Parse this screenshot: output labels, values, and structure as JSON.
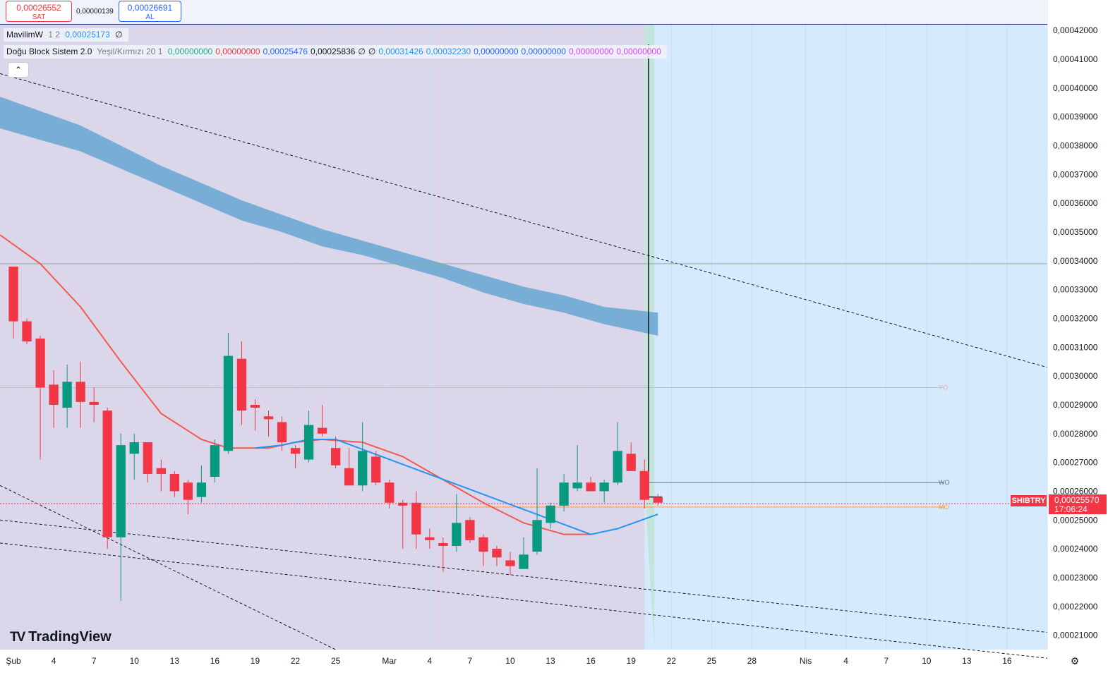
{
  "top_panel": {
    "sell_price": "0,00026552",
    "sell_label": "SAT",
    "spread": "0,00000139",
    "buy_price": "0,00026691",
    "buy_label": "AL"
  },
  "legend1": {
    "name": "MavilimW",
    "params": "1 2",
    "value": "0,00025173",
    "empty": "∅"
  },
  "legend2": {
    "name": "Doğu Block Sistem 2.0",
    "params": "Yeşil/Kırmızı 20 1",
    "values": [
      {
        "text": "0,00000000",
        "color": "#22ab94"
      },
      {
        "text": "0,00000000",
        "color": "#f23645"
      },
      {
        "text": "0,00025476",
        "color": "#2962ff"
      },
      {
        "text": "0,00025836",
        "color": "#131722"
      },
      {
        "text": "∅",
        "color": "#131722"
      },
      {
        "text": "∅",
        "color": "#131722"
      },
      {
        "text": "0,00031426",
        "color": "#2196f3"
      },
      {
        "text": "0,00032230",
        "color": "#2196f3"
      },
      {
        "text": "0,00000000",
        "color": "#2962ff"
      },
      {
        "text": "0,00000000",
        "color": "#2962ff"
      },
      {
        "text": "0,00000000",
        "color": "#e040fb"
      },
      {
        "text": "0,00000000",
        "color": "#e040fb"
      }
    ]
  },
  "collapse_glyph": "⌃",
  "logo": {
    "mark": "TV",
    "text": "TradingView"
  },
  "settings_glyph": "⚙",
  "symbol": "SHIBTRY",
  "last_price": "0,00025570",
  "countdown": "17:06:24",
  "level_labels": {
    "yo": "YO",
    "wo": "WO",
    "mo": "MO"
  },
  "colors": {
    "up": "#089981",
    "down": "#f23645",
    "bg_blue": "#d6eafd",
    "bg_purple": "#dcd6ea",
    "cloud": "#72acd4",
    "ma_red": "#f15b4f",
    "ma_blue": "#2196f3"
  },
  "chart_data": {
    "type": "candlestick",
    "y_axis": {
      "min": 0.000205,
      "max": 0.000422,
      "ticks": [
        "0,00042000",
        "0,00041000",
        "0,00040000",
        "0,00039000",
        "0,00038000",
        "0,00037000",
        "0,00036000",
        "0,00035000",
        "0,00034000",
        "0,00033000",
        "0,00032000",
        "0,00031000",
        "0,00030000",
        "0,00029000",
        "0,00028000",
        "0,00027000",
        "0,00026000",
        "0,00025000",
        "0,00024000",
        "0,00023000",
        "0,00022000",
        "0,00021000"
      ],
      "tick_values": [
        0.00042,
        0.00041,
        0.0004,
        0.00039,
        0.00038,
        0.00037,
        0.00036,
        0.00035,
        0.00034,
        0.00033,
        0.00032,
        0.00031,
        0.0003,
        0.00029,
        0.00028,
        0.00027,
        0.00026,
        0.00025,
        0.00024,
        0.00023,
        0.00022,
        0.00021
      ]
    },
    "x_axis": {
      "labels": [
        "Şub",
        "4",
        "7",
        "10",
        "13",
        "16",
        "19",
        "22",
        "25",
        "Mar",
        "4",
        "7",
        "10",
        "13",
        "16",
        "19",
        "22",
        "25",
        "28",
        "Nis",
        "4",
        "7",
        "10",
        "13",
        "16"
      ],
      "label_days": [
        1,
        4,
        7,
        10,
        13,
        16,
        19,
        22,
        25,
        29,
        32,
        35,
        38,
        41,
        44,
        47,
        50,
        53,
        56,
        60,
        63,
        66,
        69,
        72,
        75
      ],
      "day_min": 0,
      "day_max": 78
    },
    "candles": [
      {
        "d": 1,
        "o": 0.000338,
        "h": 0.000338,
        "l": 0.000313,
        "c": 0.000319
      },
      {
        "d": 2,
        "o": 0.000319,
        "h": 0.00032,
        "l": 0.000311,
        "c": 0.000312
      },
      {
        "d": 3,
        "o": 0.000313,
        "h": 0.000314,
        "l": 0.000271,
        "c": 0.000296
      },
      {
        "d": 4,
        "o": 0.000297,
        "h": 0.000302,
        "l": 0.000282,
        "c": 0.00029
      },
      {
        "d": 5,
        "o": 0.000289,
        "h": 0.000304,
        "l": 0.000282,
        "c": 0.000298
      },
      {
        "d": 6,
        "o": 0.000298,
        "h": 0.000305,
        "l": 0.000282,
        "c": 0.000291
      },
      {
        "d": 7,
        "o": 0.000291,
        "h": 0.000296,
        "l": 0.000284,
        "c": 0.00029
      },
      {
        "d": 8,
        "o": 0.000288,
        "h": 0.000289,
        "l": 0.00024,
        "c": 0.000244
      },
      {
        "d": 9,
        "o": 0.000244,
        "h": 0.00028,
        "l": 0.000222,
        "c": 0.000276
      },
      {
        "d": 10,
        "o": 0.000273,
        "h": 0.00028,
        "l": 0.000264,
        "c": 0.000277
      },
      {
        "d": 11,
        "o": 0.000277,
        "h": 0.000277,
        "l": 0.000263,
        "c": 0.000266
      },
      {
        "d": 12,
        "o": 0.000268,
        "h": 0.000271,
        "l": 0.00026,
        "c": 0.000266
      },
      {
        "d": 13,
        "o": 0.000266,
        "h": 0.000267,
        "l": 0.000258,
        "c": 0.00026
      },
      {
        "d": 14,
        "o": 0.000263,
        "h": 0.000264,
        "l": 0.000252,
        "c": 0.000257
      },
      {
        "d": 15,
        "o": 0.000258,
        "h": 0.000269,
        "l": 0.000256,
        "c": 0.000263
      },
      {
        "d": 16,
        "o": 0.000265,
        "h": 0.000278,
        "l": 0.000263,
        "c": 0.000276
      },
      {
        "d": 17,
        "o": 0.000274,
        "h": 0.000315,
        "l": 0.000273,
        "c": 0.000307
      },
      {
        "d": 18,
        "o": 0.000306,
        "h": 0.000312,
        "l": 0.000283,
        "c": 0.000288
      },
      {
        "d": 19,
        "o": 0.00029,
        "h": 0.000292,
        "l": 0.000281,
        "c": 0.000289
      },
      {
        "d": 20,
        "o": 0.000286,
        "h": 0.000288,
        "l": 0.000279,
        "c": 0.000285
      },
      {
        "d": 21,
        "o": 0.000284,
        "h": 0.000286,
        "l": 0.000274,
        "c": 0.000277
      },
      {
        "d": 22,
        "o": 0.000275,
        "h": 0.000276,
        "l": 0.000268,
        "c": 0.000273
      },
      {
        "d": 23,
        "o": 0.000271,
        "h": 0.000288,
        "l": 0.00027,
        "c": 0.000283
      },
      {
        "d": 24,
        "o": 0.000282,
        "h": 0.00029,
        "l": 0.000279,
        "c": 0.00028
      },
      {
        "d": 25,
        "o": 0.000275,
        "h": 0.000279,
        "l": 0.000268,
        "c": 0.000269
      },
      {
        "d": 26,
        "o": 0.000268,
        "h": 0.000275,
        "l": 0.000262,
        "c": 0.000262
      },
      {
        "d": 27,
        "o": 0.000262,
        "h": 0.000284,
        "l": 0.00026,
        "c": 0.000274
      },
      {
        "d": 28,
        "o": 0.000272,
        "h": 0.000274,
        "l": 0.000262,
        "c": 0.000263
      },
      {
        "d": 29,
        "o": 0.000263,
        "h": 0.000264,
        "l": 0.000254,
        "c": 0.000256
      },
      {
        "d": 30,
        "o": 0.000256,
        "h": 0.000257,
        "l": 0.00024,
        "c": 0.000255
      },
      {
        "d": 31,
        "o": 0.000256,
        "h": 0.00026,
        "l": 0.00024,
        "c": 0.000245
      },
      {
        "d": 32,
        "o": 0.000244,
        "h": 0.000247,
        "l": 0.00024,
        "c": 0.000243
      },
      {
        "d": 33,
        "o": 0.000242,
        "h": 0.000244,
        "l": 0.000232,
        "c": 0.000241
      },
      {
        "d": 34,
        "o": 0.000241,
        "h": 0.000259,
        "l": 0.000239,
        "c": 0.000249
      },
      {
        "d": 35,
        "o": 0.00025,
        "h": 0.000251,
        "l": 0.000242,
        "c": 0.000243
      },
      {
        "d": 36,
        "o": 0.000244,
        "h": 0.000245,
        "l": 0.000234,
        "c": 0.000239
      },
      {
        "d": 37,
        "o": 0.00024,
        "h": 0.000241,
        "l": 0.000234,
        "c": 0.000237
      },
      {
        "d": 38,
        "o": 0.000236,
        "h": 0.000239,
        "l": 0.000231,
        "c": 0.000234
      },
      {
        "d": 39,
        "o": 0.000233,
        "h": 0.000244,
        "l": 0.000233,
        "c": 0.000238
      },
      {
        "d": 40,
        "o": 0.000239,
        "h": 0.000268,
        "l": 0.000238,
        "c": 0.00025
      },
      {
        "d": 41,
        "o": 0.000249,
        "h": 0.000256,
        "l": 0.000247,
        "c": 0.000255
      },
      {
        "d": 42,
        "o": 0.000255,
        "h": 0.000266,
        "l": 0.000253,
        "c": 0.000263
      },
      {
        "d": 43,
        "o": 0.000261,
        "h": 0.000276,
        "l": 0.00026,
        "c": 0.000263
      },
      {
        "d": 44,
        "o": 0.000263,
        "h": 0.000265,
        "l": 0.00026,
        "c": 0.00026
      },
      {
        "d": 45,
        "o": 0.00026,
        "h": 0.000264,
        "l": 0.000256,
        "c": 0.000263
      },
      {
        "d": 46,
        "o": 0.000263,
        "h": 0.000284,
        "l": 0.000262,
        "c": 0.000274
      },
      {
        "d": 47,
        "o": 0.000273,
        "h": 0.000277,
        "l": 0.000267,
        "c": 0.000267
      },
      {
        "d": 48,
        "o": 0.000267,
        "h": 0.000271,
        "l": 0.000254,
        "c": 0.000257
      },
      {
        "d": 49,
        "o": 0.000258,
        "h": 0.000259,
        "l": 0.000255,
        "c": 0.000256
      }
    ],
    "series": [
      {
        "type": "line",
        "color": "#f15b4f",
        "points": [
          [
            0,
            0.000349
          ],
          [
            3,
            0.000339
          ],
          [
            6,
            0.000324
          ],
          [
            9,
            0.000305
          ],
          [
            12,
            0.000287
          ],
          [
            15,
            0.000278
          ],
          [
            17,
            0.000275
          ],
          [
            20,
            0.000275
          ],
          [
            22,
            0.000277
          ],
          [
            24,
            0.000278
          ],
          [
            27,
            0.000277
          ],
          [
            30,
            0.000272
          ],
          [
            33,
            0.000264
          ],
          [
            36,
            0.000256
          ],
          [
            39,
            0.000249
          ],
          [
            42,
            0.000245
          ],
          [
            44,
            0.000245
          ]
        ]
      },
      {
        "type": "line",
        "color": "#2196f3",
        "points": [
          [
            19,
            0.000275
          ],
          [
            21,
            0.000276
          ],
          [
            23,
            0.000278
          ],
          [
            25,
            0.000278
          ],
          [
            44,
            0.000245
          ],
          [
            46,
            0.000247
          ],
          [
            49,
            0.000252
          ]
        ]
      },
      {
        "type": "band",
        "color": "#72acd4",
        "upper": [
          [
            0,
            0.000397
          ],
          [
            3,
            0.000392
          ],
          [
            6,
            0.000387
          ],
          [
            9,
            0.00038
          ],
          [
            12,
            0.000373
          ],
          [
            15,
            0.000367
          ],
          [
            18,
            0.000361
          ],
          [
            21,
            0.000356
          ],
          [
            24,
            0.000351
          ],
          [
            27,
            0.000347
          ],
          [
            30,
            0.000343
          ],
          [
            33,
            0.000339
          ],
          [
            36,
            0.000335
          ],
          [
            39,
            0.000331
          ],
          [
            42,
            0.000328
          ],
          [
            45,
            0.000324
          ],
          [
            49,
            0.000322
          ]
        ],
        "lower": [
          [
            0,
            0.000386
          ],
          [
            3,
            0.000382
          ],
          [
            6,
            0.000378
          ],
          [
            9,
            0.000372
          ],
          [
            12,
            0.000366
          ],
          [
            15,
            0.00036
          ],
          [
            18,
            0.000354
          ],
          [
            21,
            0.00035
          ],
          [
            24,
            0.000345
          ],
          [
            27,
            0.000342
          ],
          [
            30,
            0.000338
          ],
          [
            33,
            0.000334
          ],
          [
            36,
            0.000329
          ],
          [
            39,
            0.000325
          ],
          [
            42,
            0.000322
          ],
          [
            45,
            0.000318
          ],
          [
            49,
            0.000314
          ]
        ]
      }
    ],
    "horizontal_levels": [
      {
        "label": "YO",
        "value": 0.000296,
        "color": "#f6a7ad"
      },
      {
        "label": "WO",
        "value": 0.000263,
        "color": "#5a7a93"
      },
      {
        "label": "MO",
        "value": 0.0002545,
        "color": "#ff9a3c"
      },
      {
        "label": "",
        "value": 0.000339,
        "color": "#7fb08a"
      },
      {
        "label": "",
        "value": 0.0002557,
        "color": "#f23645"
      }
    ],
    "trend_lines": [
      {
        "from": [
          0,
          0.000405
        ],
        "to": [
          78,
          0.000303
        ]
      },
      {
        "from": [
          0,
          0.00025
        ],
        "to": [
          78,
          0.000211
        ]
      },
      {
        "from": [
          0,
          0.000242
        ],
        "to": [
          78,
          0.000202
        ]
      },
      {
        "from": [
          0,
          0.000262
        ],
        "to": [
          25,
          0.000205
        ]
      }
    ],
    "zones": {
      "purple_until_day": 48,
      "green_strip_day": 48
    }
  }
}
